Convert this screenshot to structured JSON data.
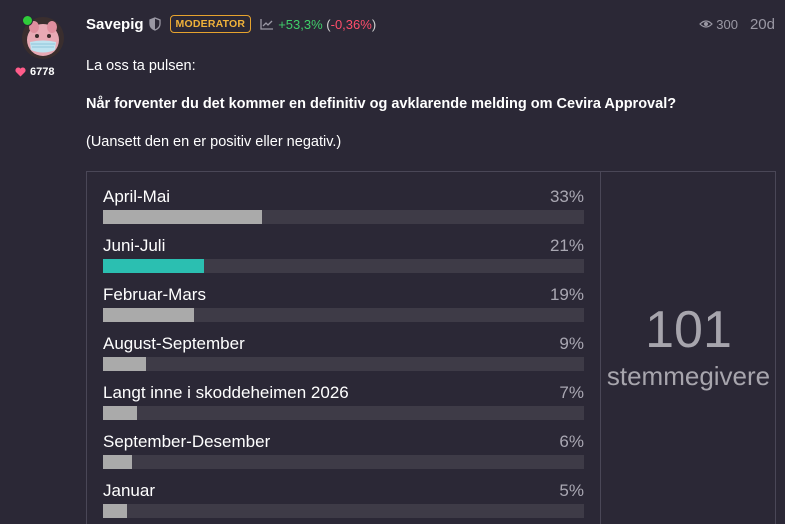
{
  "post": {
    "author": {
      "username": "Savepig",
      "likes": "6778",
      "badge": "MODERATOR",
      "performance_up": "+53,3%",
      "performance_down": "-0,36%",
      "avatar_icon": "piggy-bank-with-mask-icon"
    },
    "views": "300",
    "age": "20d",
    "line1": "La oss ta pulsen:",
    "question": "Når forventer du det kommer en definitiv og avklarende melding om Cevira Approval?",
    "line3": "(Uansett den en er positiv eller negativ.)"
  },
  "poll": {
    "options": [
      {
        "label": "April-Mai",
        "percent_text": "33%",
        "percent": 33,
        "selected": false
      },
      {
        "label": "Juni-Juli",
        "percent_text": "21%",
        "percent": 21,
        "selected": true
      },
      {
        "label": "Februar-Mars",
        "percent_text": "19%",
        "percent": 19,
        "selected": false
      },
      {
        "label": "August-September",
        "percent_text": "9%",
        "percent": 9,
        "selected": false
      },
      {
        "label": "Langt inne i skoddeheimen 2026",
        "percent_text": "7%",
        "percent": 7,
        "selected": false
      },
      {
        "label": "September-Desember",
        "percent_text": "6%",
        "percent": 6,
        "selected": false
      },
      {
        "label": "Januar",
        "percent_text": "5%",
        "percent": 5,
        "selected": false
      }
    ],
    "total_count": "101",
    "total_label": "stemmegivere"
  },
  "colors": {
    "background": "#2b2836",
    "selected_bar": "#2bbfb1",
    "bar": "#aaaaaa",
    "track": "#3e3b47",
    "moderator": "#f0b23a",
    "positive": "#3fcf6a",
    "negative": "#ff4d6a",
    "heart": "#ff5c8a"
  }
}
